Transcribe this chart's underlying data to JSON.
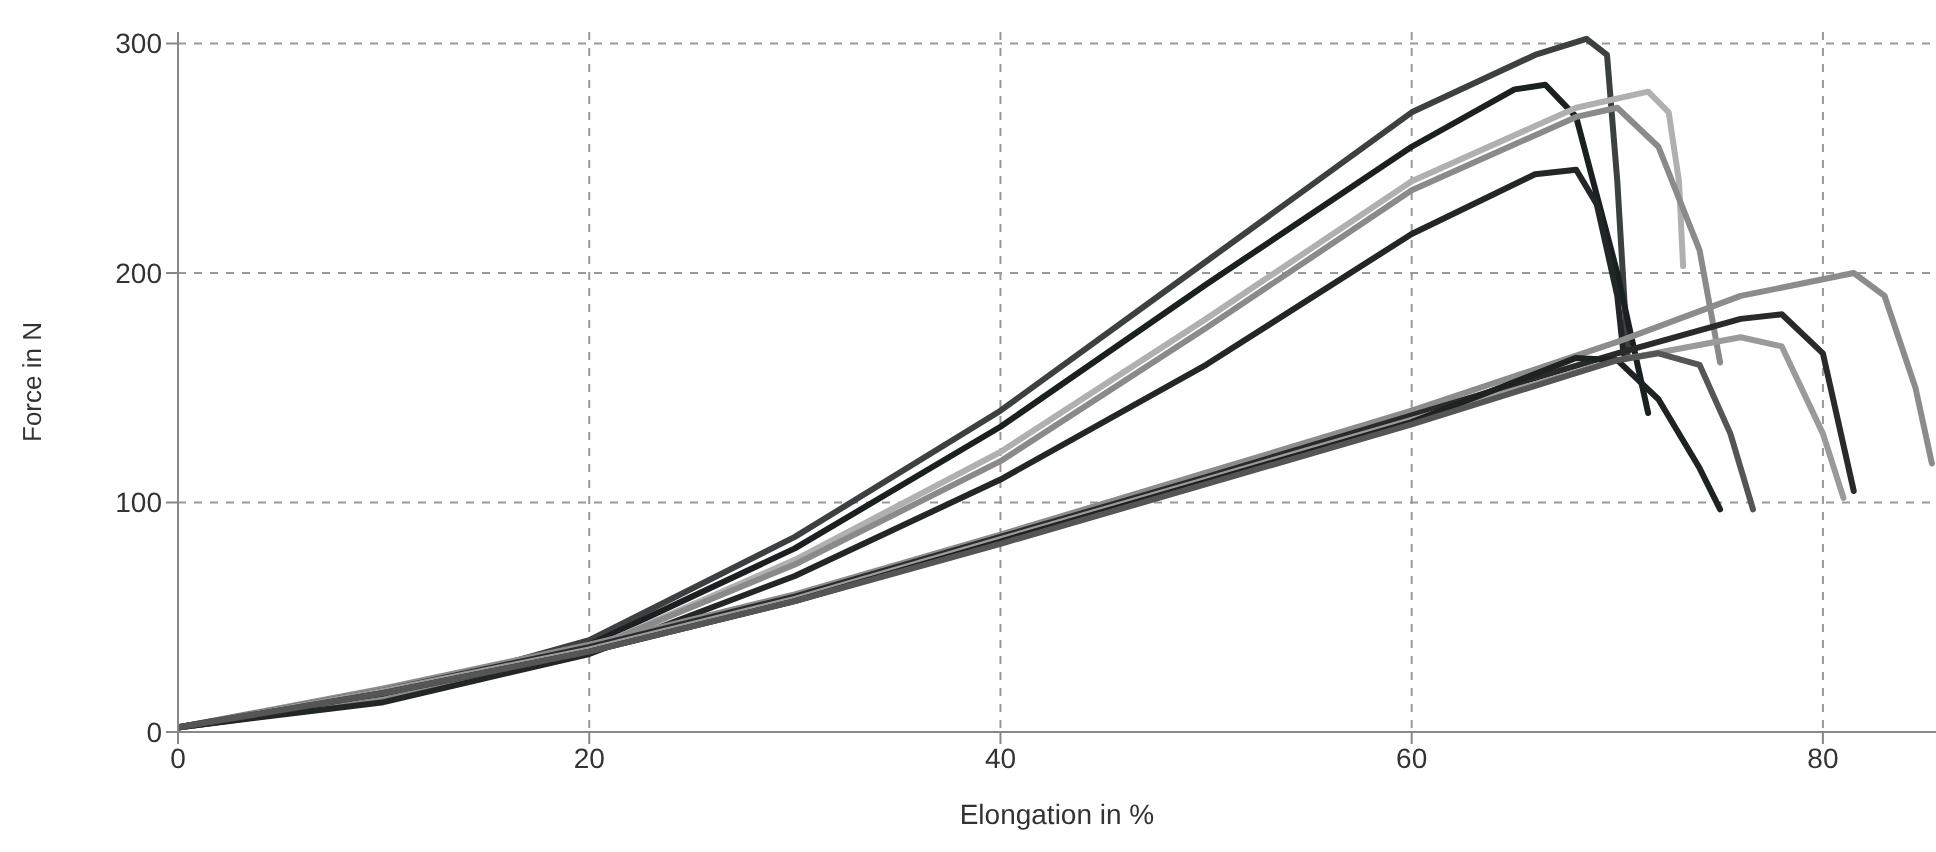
{
  "chart_data": {
    "type": "line",
    "xlabel": "Elongation in %",
    "ylabel": "Force in N",
    "xlim": [
      0,
      85.5
    ],
    "ylim": [
      0,
      305
    ],
    "xticks": [
      0,
      20,
      40,
      60,
      80
    ],
    "yticks": [
      0,
      100,
      200,
      300
    ],
    "grid": true,
    "marker": "none",
    "line_style": "solid",
    "series": [
      {
        "color": "#3c4040",
        "x": [
          0,
          10,
          20,
          30,
          40,
          50,
          60,
          66,
          68.5,
          69.5,
          70,
          70.5
        ],
        "values": [
          2,
          15,
          40,
          85,
          140,
          205,
          270,
          295,
          302,
          295,
          240,
          165
        ]
      },
      {
        "color": "#1a1f1f",
        "x": [
          0,
          10,
          20,
          30,
          40,
          50,
          60,
          65,
          66.5,
          68,
          70,
          71.5
        ],
        "values": [
          2,
          14,
          38,
          80,
          133,
          195,
          255,
          280,
          282,
          268,
          200,
          139
        ]
      },
      {
        "color": "#b0b0b0",
        "x": [
          0,
          10,
          20,
          30,
          40,
          50,
          60,
          68,
          71.5,
          72.5,
          73,
          73.2
        ],
        "values": [
          2,
          14,
          36,
          75,
          122,
          180,
          240,
          272,
          279,
          270,
          240,
          203
        ]
      },
      {
        "color": "#8a8a8a",
        "x": [
          0,
          10,
          20,
          30,
          40,
          50,
          60,
          68,
          70,
          72,
          74,
          75
        ],
        "values": [
          2,
          14,
          36,
          73,
          118,
          176,
          236,
          268,
          272,
          255,
          210,
          161
        ]
      },
      {
        "color": "#222626",
        "x": [
          0,
          10,
          20,
          30,
          40,
          50,
          60,
          66,
          68,
          69,
          70,
          70.3
        ],
        "values": [
          2,
          13,
          34,
          68,
          110,
          160,
          217,
          243,
          245,
          230,
          190,
          165
        ]
      },
      {
        "color": "#8c8c8c",
        "x": [
          0,
          10,
          20,
          30,
          40,
          50,
          60,
          70,
          76,
          81.5,
          83,
          84.5,
          85.3
        ],
        "values": [
          2,
          19,
          38,
          60,
          86,
          113,
          140,
          170,
          190,
          200,
          190,
          150,
          117
        ]
      },
      {
        "color": "#2a2a2a",
        "x": [
          0,
          10,
          20,
          30,
          40,
          50,
          60,
          70,
          76,
          78,
          80,
          81.5
        ],
        "values": [
          2,
          18,
          37,
          59,
          85,
          111,
          138,
          165,
          180,
          182,
          165,
          105
        ]
      },
      {
        "color": "#9a9a9a",
        "x": [
          0,
          10,
          20,
          30,
          40,
          50,
          60,
          70,
          76,
          78,
          80,
          81
        ],
        "values": [
          2,
          18,
          36,
          58,
          84,
          110,
          136,
          162,
          172,
          168,
          130,
          102
        ]
      },
      {
        "color": "#1e2222",
        "x": [
          0,
          10,
          20,
          30,
          40,
          50,
          60,
          68,
          70,
          72,
          74,
          75
        ],
        "values": [
          2,
          17,
          35,
          57,
          83,
          109,
          135,
          163,
          162,
          145,
          115,
          97
        ]
      },
      {
        "color": "#555555",
        "x": [
          0,
          10,
          20,
          30,
          40,
          50,
          60,
          70,
          72,
          74,
          75.5,
          76.6
        ],
        "values": [
          2,
          17,
          35,
          57,
          82,
          108,
          134,
          162,
          165,
          160,
          130,
          97
        ]
      }
    ]
  }
}
